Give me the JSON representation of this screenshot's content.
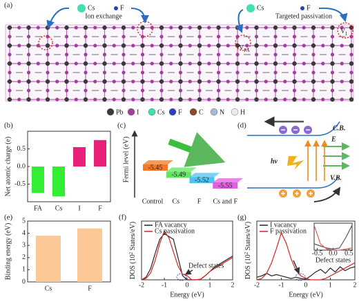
{
  "figure": {
    "panel_labels": [
      "(a)",
      "(b)",
      "(c)",
      "(d)",
      "(e)",
      "(f)",
      "(g)"
    ],
    "structure": {
      "ion_exchange": {
        "title": "Ion exchange",
        "ions": [
          "Cs",
          "F"
        ]
      },
      "targeted_passivation": {
        "title": "Targeted passivation",
        "ions": [
          "Cs",
          "F"
        ]
      },
      "vacancies": [
        {
          "main": "V",
          "sub": "FA"
        },
        {
          "main": "V",
          "sub": "I"
        }
      ],
      "legend": [
        {
          "label": "Pb",
          "color": "#3a3a3a"
        },
        {
          "label": "I",
          "color": "#a0409a"
        },
        {
          "label": "Cs",
          "color": "#40e0b0"
        },
        {
          "label": "F",
          "color": "#2c3fc0"
        },
        {
          "label": "C",
          "color": "#8a4a2a"
        },
        {
          "label": "N",
          "color": "#a8b8d8"
        },
        {
          "label": "H",
          "color": "#f4e8f0"
        }
      ]
    },
    "band_diagram": {
      "conduction_band": "C.B.",
      "valence_band": "V.B.",
      "field": "E",
      "photon": "hv"
    }
  },
  "chart_data": [
    {
      "type": "bar",
      "ylabel": "Net atomic charge (e)",
      "categories": [
        "FA",
        "Cs",
        "I",
        "F"
      ],
      "values": [
        -0.75,
        -0.85,
        0.55,
        0.75
      ],
      "colors": [
        "#33ee33",
        "#33ee33",
        "#e8207a",
        "#e8207a"
      ],
      "ylim": [
        -1,
        1
      ],
      "yticks": [
        -0.5,
        {
          "value": 0,
          "label": "0.0"
        },
        0.5
      ]
    },
    {
      "type": "level",
      "ylabel": "Fermi level (eV)",
      "categories": [
        "Control",
        "Cs",
        "F",
        "Cs and F"
      ],
      "values": [
        -5.45,
        -5.49,
        -5.52,
        -5.55
      ],
      "colors": [
        "#f07a28",
        "#5fe85f",
        "#4fc3f0",
        "#e060e0"
      ]
    },
    {
      "type": "bar",
      "ylabel": "Binding energy (eV)",
      "categories": [
        "Cs",
        "F"
      ],
      "values": [
        3.8,
        4.4
      ],
      "colors": [
        "#fcc896",
        "#fcc896"
      ],
      "ylim": [
        0,
        5
      ],
      "yticks": [
        0,
        1,
        2,
        3,
        4,
        5
      ]
    },
    {
      "type": "line",
      "xlabel": "Energy (eV)",
      "ylabel": [
        "DOS (10",
        "2",
        " States/eV)"
      ],
      "annotation": "Defect states",
      "x": [
        -2,
        -1.8,
        -1.6,
        -1.4,
        -1.2,
        -1,
        -0.8,
        -0.6,
        -0.4,
        -0.2,
        0,
        0.2,
        0.4,
        0.6,
        0.8,
        1,
        1.2,
        1.4,
        1.6,
        1.8,
        2
      ],
      "series": [
        {
          "name": "FA vacancy",
          "color": "#222222",
          "values": [
            0,
            0.2,
            0.8,
            1.9,
            2.9,
            3.3,
            3.1,
            2.9,
            1.6,
            0.3,
            0,
            0,
            0,
            0.05,
            0.3,
            0.6,
            0.9,
            1.1,
            1.3,
            1.5,
            1.7
          ]
        },
        {
          "name": "Cs passivation",
          "color": "#e02020",
          "values": [
            0,
            0.1,
            0.5,
            1.4,
            2.6,
            3.5,
            3,
            2,
            1,
            0.4,
            0.3,
            0,
            0,
            0.05,
            0.3,
            0.6,
            0.8,
            1,
            1.2,
            1.4,
            1.6
          ]
        }
      ],
      "xlim": [
        -2,
        2
      ],
      "xticks": [
        -2,
        -1,
        0,
        1,
        2
      ],
      "ylim": [
        0,
        4.2
      ]
    },
    {
      "type": "line",
      "xlabel": "Energy (eV)",
      "ylabel": [
        "DOS (10",
        "2",
        " States/eV)"
      ],
      "annotation": "Defect states",
      "x": [
        -2,
        -1.8,
        -1.6,
        -1.4,
        -1.2,
        -1,
        -0.8,
        -0.6,
        -0.4,
        -0.2,
        0,
        0.2,
        0.4,
        0.6,
        0.8,
        1,
        1.2,
        1.4,
        1.6,
        1.8,
        2
      ],
      "series": [
        {
          "name": "I vacancy",
          "color": "#222222",
          "values": [
            0.2,
            0.3,
            0.5,
            0.3,
            0.4,
            0.3,
            0.2,
            0.1,
            0.2,
            0.1,
            0.05,
            0.3,
            0.6,
            0.8,
            0.5,
            0.9,
            0.6,
            1,
            0.7,
            0.9,
            1
          ]
        },
        {
          "name": "F passivation",
          "color": "#e02020",
          "values": [
            0,
            0.1,
            0.5,
            1.3,
            2.4,
            3.6,
            2.8,
            1.6,
            0.7,
            0.3,
            0.1,
            0,
            0,
            0,
            0.1,
            0.3,
            0.5,
            0.7,
            0.9,
            1.1,
            1.3
          ]
        }
      ],
      "xlim": [
        -2,
        2
      ],
      "xticks": [
        -2,
        -1,
        0,
        1,
        2
      ],
      "ylim": [
        0,
        4.5
      ]
    },
    {
      "type": "line",
      "annotation": "Defect states",
      "x": [
        -0.6,
        -0.4,
        -0.2,
        0,
        0.2,
        0.4,
        0.6
      ],
      "series": [
        {
          "color": "#555555",
          "values": [
            0.3,
            0.2,
            0.1,
            0.05,
            0.1,
            0.6,
            1.2
          ]
        },
        {
          "color": "#e06060",
          "values": [
            1.2,
            0.3,
            0.05,
            0,
            0,
            0.05,
            0.1
          ]
        }
      ],
      "xlim": [
        -0.6,
        0.6
      ],
      "xticks": [
        -0.5,
        {
          "value": 0,
          "label": "0.0"
        },
        0.5
      ],
      "ylim": [
        0,
        1.3
      ]
    }
  ]
}
